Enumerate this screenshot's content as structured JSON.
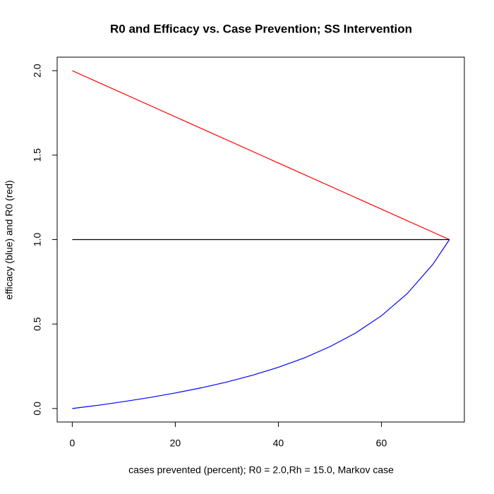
{
  "chart_data": {
    "type": "line",
    "title": "R0 and Efficacy vs. Case Prevention; SS Intervention",
    "x_label": "cases prevented (percent); R0 = 2.0,Rh = 15.0, Markov case",
    "y_label": "efficacy (blue) and R0 (red)",
    "xlim": [
      -2.93,
      76.1
    ],
    "ylim": [
      -0.08,
      2.08
    ],
    "xticks": [
      0,
      20,
      40,
      60
    ],
    "yticks": [
      {
        "value": 0,
        "label": "0.0"
      },
      {
        "value": 0.5,
        "label": "0.5"
      },
      {
        "value": 1,
        "label": "1.0"
      },
      {
        "value": 1.5,
        "label": "1.5"
      },
      {
        "value": 2,
        "label": "2.0"
      }
    ],
    "series": [
      {
        "color": "#ff0000",
        "x": [
          0,
          73.2
        ],
        "values": [
          2,
          1
        ]
      },
      {
        "color": "#000000",
        "x": [
          0,
          73.2
        ],
        "values": [
          1,
          1
        ]
      },
      {
        "color": "#0000ff",
        "x": [
          0,
          5,
          10,
          15,
          20,
          25,
          30,
          35,
          40,
          45,
          50,
          55,
          60,
          65,
          70,
          73.2
        ],
        "values": [
          0,
          0.019,
          0.041,
          0.065,
          0.092,
          0.122,
          0.157,
          0.197,
          0.244,
          0.299,
          0.366,
          0.447,
          0.549,
          0.68,
          0.854,
          1
        ]
      }
    ]
  }
}
